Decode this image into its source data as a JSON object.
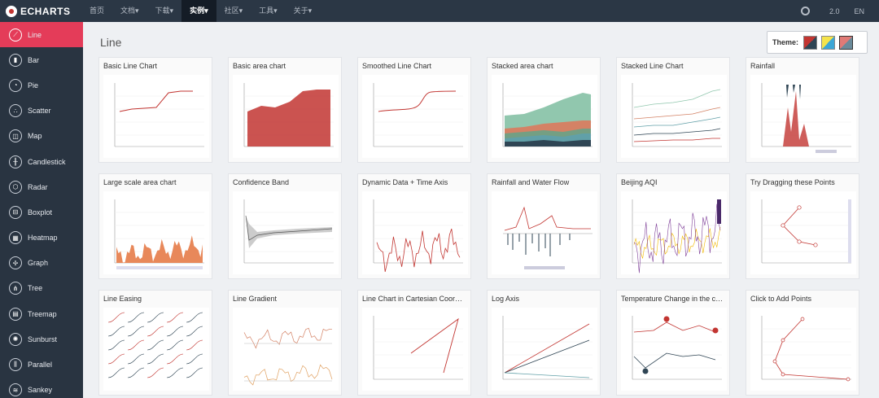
{
  "topbar": {
    "logo": "ECHARTS",
    "nav": [
      {
        "label": "首页",
        "active": false
      },
      {
        "label": "文档▾",
        "active": false
      },
      {
        "label": "下载▾",
        "active": false
      },
      {
        "label": "实例▾",
        "active": true
      },
      {
        "label": "社区▾",
        "active": false
      },
      {
        "label": "工具▾",
        "active": false
      },
      {
        "label": "关于▾",
        "active": false
      }
    ],
    "version": "2.0",
    "lang": "EN"
  },
  "sidebar": {
    "items": [
      {
        "label": "Line",
        "icon": "line-chart-icon",
        "glyph": "⟋",
        "active": true
      },
      {
        "label": "Bar",
        "icon": "bar-chart-icon",
        "glyph": "▮",
        "active": false
      },
      {
        "label": "Pie",
        "icon": "pie-chart-icon",
        "glyph": "◔",
        "active": false
      },
      {
        "label": "Scatter",
        "icon": "scatter-chart-icon",
        "glyph": "∴",
        "active": false
      },
      {
        "label": "Map",
        "icon": "map-icon",
        "glyph": "◫",
        "active": false
      },
      {
        "label": "Candlestick",
        "icon": "candlestick-icon",
        "glyph": "╫",
        "active": false
      },
      {
        "label": "Radar",
        "icon": "radar-icon",
        "glyph": "⬡",
        "active": false
      },
      {
        "label": "Boxplot",
        "icon": "boxplot-icon",
        "glyph": "⊟",
        "active": false
      },
      {
        "label": "Heatmap",
        "icon": "heatmap-icon",
        "glyph": "▦",
        "active": false
      },
      {
        "label": "Graph",
        "icon": "graph-icon",
        "glyph": "✢",
        "active": false
      },
      {
        "label": "Tree",
        "icon": "tree-icon",
        "glyph": "⋔",
        "active": false
      },
      {
        "label": "Treemap",
        "icon": "treemap-icon",
        "glyph": "▤",
        "active": false
      },
      {
        "label": "Sunburst",
        "icon": "sunburst-icon",
        "glyph": "✺",
        "active": false
      },
      {
        "label": "Parallel",
        "icon": "parallel-icon",
        "glyph": "⫼",
        "active": false
      },
      {
        "label": "Sankey",
        "icon": "sankey-icon",
        "glyph": "≋",
        "active": false
      }
    ]
  },
  "main": {
    "title": "Line",
    "theme_label": "Theme:",
    "examples": [
      {
        "title": "Basic Line Chart",
        "thumb": "basic-line"
      },
      {
        "title": "Basic area chart",
        "thumb": "basic-area"
      },
      {
        "title": "Smoothed Line Chart",
        "thumb": "smoothed-line"
      },
      {
        "title": "Stacked area chart",
        "thumb": "stacked-area"
      },
      {
        "title": "Stacked Line Chart",
        "thumb": "stacked-line"
      },
      {
        "title": "Rainfall",
        "thumb": "rainfall"
      },
      {
        "title": "Large scale area chart",
        "thumb": "large-area"
      },
      {
        "title": "Confidence Band",
        "thumb": "confidence-band"
      },
      {
        "title": "Dynamic Data + Time Axis",
        "thumb": "dynamic-data"
      },
      {
        "title": "Rainfall and Water Flow",
        "thumb": "rainfall-flow"
      },
      {
        "title": "Beijing AQI",
        "thumb": "beijing-aqi"
      },
      {
        "title": "Try Dragging these Points",
        "thumb": "drag-points"
      },
      {
        "title": "Line Easing",
        "thumb": "line-easing"
      },
      {
        "title": "Line Gradient",
        "thumb": "line-gradient"
      },
      {
        "title": "Line Chart in Cartesian Coor…",
        "thumb": "cartesian"
      },
      {
        "title": "Log Axis",
        "thumb": "log-axis"
      },
      {
        "title": "Temperature Change in the c…",
        "thumb": "temperature"
      },
      {
        "title": "Click to Add Points",
        "thumb": "add-points"
      }
    ]
  },
  "colors": {
    "accent": "#e43c59",
    "series_red": "#c23531",
    "series_dark": "#2f4554",
    "topbar": "#2b3745",
    "sidebar": "#293441"
  }
}
